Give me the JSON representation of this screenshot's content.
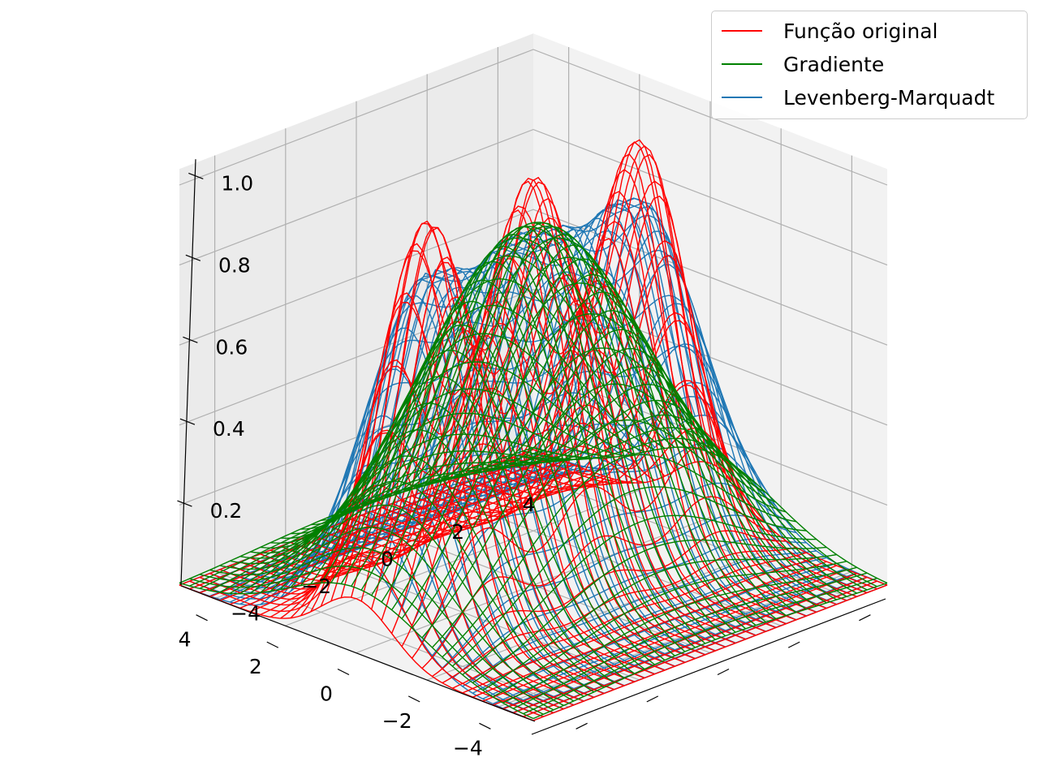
{
  "chart_data": {
    "type": "surface-wireframe-3d",
    "title": "",
    "x_ticks": [
      "−4",
      "−2",
      "0",
      "2",
      "4"
    ],
    "y_ticks": [
      "4",
      "2",
      "0",
      "−2",
      "−4"
    ],
    "z_ticks": [
      "0.2",
      "0.4",
      "0.6",
      "0.8",
      "1.0"
    ],
    "x_range": [
      -5,
      5
    ],
    "y_range": [
      -5,
      5
    ],
    "z_range": [
      0.0,
      1.0
    ],
    "grid": true,
    "legend_position": "top-right",
    "series": [
      {
        "name": "Função original",
        "color": "#ff0000",
        "shape": "three gaussian peaks along the y axis, height 1.0"
      },
      {
        "name": "Gradiente",
        "color": "#008000",
        "shape": "single broad dome, height about 0.9"
      },
      {
        "name": "Levenberg-Marquadt",
        "color": "#1f77b4",
        "shape": "three merged peaks, height about 0.85"
      }
    ]
  }
}
